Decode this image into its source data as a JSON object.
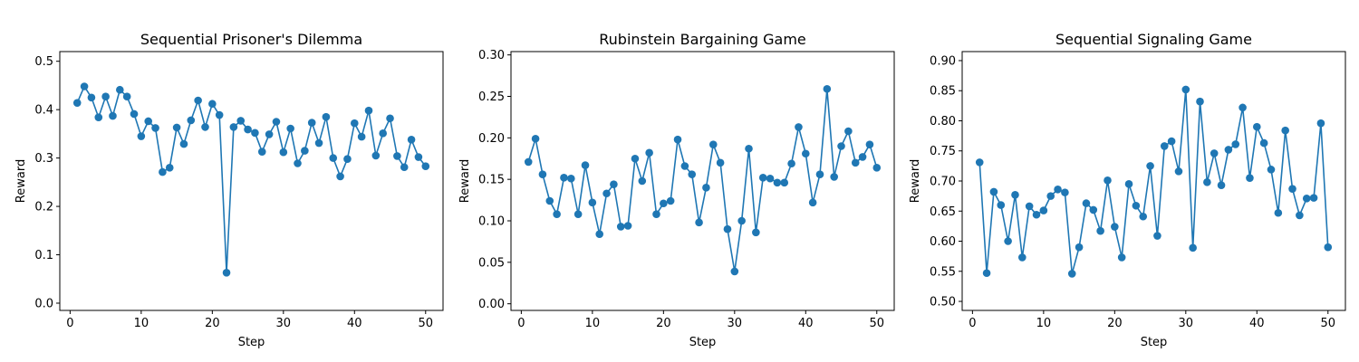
{
  "chart_data": [
    {
      "type": "line",
      "title": "Sequential Prisoner's Dilemma",
      "xlabel": "Step",
      "ylabel": "Reward",
      "xlim": [
        -1.45,
        52.45
      ],
      "ylim": [
        -0.015,
        0.52
      ],
      "xticks": [
        0,
        10,
        20,
        30,
        40,
        50
      ],
      "yticks": [
        0.0,
        0.1,
        0.2,
        0.3,
        0.4,
        0.5
      ],
      "ytick_decimals": 1,
      "grid": false,
      "color": "#1f77b4",
      "marker": "circle",
      "x": [
        1,
        2,
        3,
        4,
        5,
        6,
        7,
        8,
        9,
        10,
        11,
        12,
        13,
        14,
        15,
        16,
        17,
        18,
        19,
        20,
        21,
        22,
        23,
        24,
        25,
        26,
        27,
        28,
        29,
        30,
        31,
        32,
        33,
        34,
        35,
        36,
        37,
        38,
        39,
        40,
        41,
        42,
        43,
        44,
        45,
        46,
        47,
        48,
        49,
        50
      ],
      "y": [
        0.414,
        0.448,
        0.425,
        0.384,
        0.427,
        0.387,
        0.441,
        0.427,
        0.391,
        0.345,
        0.376,
        0.362,
        0.271,
        0.28,
        0.363,
        0.329,
        0.378,
        0.419,
        0.364,
        0.412,
        0.389,
        0.063,
        0.364,
        0.377,
        0.359,
        0.352,
        0.313,
        0.349,
        0.375,
        0.312,
        0.361,
        0.289,
        0.315,
        0.373,
        0.331,
        0.385,
        0.3,
        0.262,
        0.298,
        0.372,
        0.344,
        0.398,
        0.305,
        0.351,
        0.382,
        0.304,
        0.281,
        0.338,
        0.302,
        0.283
      ]
    },
    {
      "type": "line",
      "title": "Rubinstein Bargaining Game",
      "xlabel": "Step",
      "ylabel": "Reward",
      "xlim": [
        -1.45,
        52.45
      ],
      "ylim": [
        -0.008,
        0.304
      ],
      "xticks": [
        0,
        10,
        20,
        30,
        40,
        50
      ],
      "yticks": [
        0.0,
        0.05,
        0.1,
        0.15,
        0.2,
        0.25,
        0.3
      ],
      "ytick_decimals": 2,
      "grid": false,
      "color": "#1f77b4",
      "marker": "circle",
      "x": [
        1,
        2,
        3,
        4,
        5,
        6,
        7,
        8,
        9,
        10,
        11,
        12,
        13,
        14,
        15,
        16,
        17,
        18,
        19,
        20,
        21,
        22,
        23,
        24,
        25,
        26,
        27,
        28,
        29,
        30,
        31,
        32,
        33,
        34,
        35,
        36,
        37,
        38,
        39,
        40,
        41,
        42,
        43,
        44,
        45,
        46,
        47,
        48,
        49,
        50
      ],
      "y": [
        0.171,
        0.199,
        0.156,
        0.124,
        0.108,
        0.152,
        0.151,
        0.108,
        0.167,
        0.122,
        0.084,
        0.133,
        0.144,
        0.093,
        0.094,
        0.175,
        0.148,
        0.182,
        0.108,
        0.121,
        0.124,
        0.198,
        0.166,
        0.156,
        0.098,
        0.14,
        0.192,
        0.17,
        0.09,
        0.039,
        0.1,
        0.187,
        0.086,
        0.152,
        0.151,
        0.146,
        0.146,
        0.169,
        0.213,
        0.181,
        0.122,
        0.156,
        0.259,
        0.153,
        0.19,
        0.208,
        0.17,
        0.177,
        0.192,
        0.164
      ]
    },
    {
      "type": "line",
      "title": "Sequential Signaling Game",
      "xlabel": "Step",
      "ylabel": "Reward",
      "xlim": [
        -1.45,
        52.45
      ],
      "ylim": [
        0.485,
        0.915
      ],
      "xticks": [
        0,
        10,
        20,
        30,
        40,
        50
      ],
      "yticks": [
        0.5,
        0.55,
        0.6,
        0.65,
        0.7,
        0.75,
        0.8,
        0.85,
        0.9
      ],
      "ytick_decimals": 2,
      "grid": false,
      "color": "#1f77b4",
      "marker": "circle",
      "x": [
        1,
        2,
        3,
        4,
        5,
        6,
        7,
        8,
        9,
        10,
        11,
        12,
        13,
        14,
        15,
        16,
        17,
        18,
        19,
        20,
        21,
        22,
        23,
        24,
        25,
        26,
        27,
        28,
        29,
        30,
        31,
        32,
        33,
        34,
        35,
        36,
        37,
        38,
        39,
        40,
        41,
        42,
        43,
        44,
        45,
        46,
        47,
        48,
        49,
        50
      ],
      "y": [
        0.731,
        0.547,
        0.682,
        0.66,
        0.6,
        0.677,
        0.573,
        0.658,
        0.644,
        0.651,
        0.675,
        0.686,
        0.681,
        0.546,
        0.59,
        0.663,
        0.652,
        0.617,
        0.701,
        0.624,
        0.573,
        0.695,
        0.659,
        0.641,
        0.725,
        0.609,
        0.758,
        0.766,
        0.716,
        0.852,
        0.589,
        0.832,
        0.698,
        0.746,
        0.693,
        0.752,
        0.761,
        0.822,
        0.705,
        0.79,
        0.763,
        0.719,
        0.647,
        0.784,
        0.687,
        0.643,
        0.671,
        0.672,
        0.796,
        0.59
      ]
    }
  ]
}
